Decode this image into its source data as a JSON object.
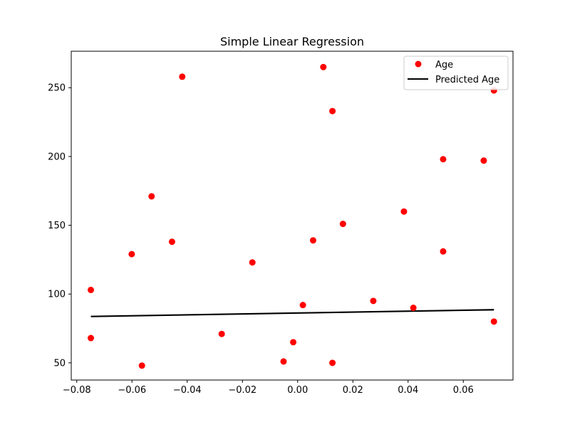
{
  "chart_data": {
    "type": "scatter",
    "title": "Simple Linear Regression",
    "xlabel": "",
    "ylabel": "",
    "xlim": [
      -0.082,
      0.078
    ],
    "ylim": [
      37.5,
      276.5
    ],
    "xticks": [
      -0.08,
      -0.06,
      -0.04,
      -0.02,
      0.0,
      0.02,
      0.04,
      0.06
    ],
    "xtick_labels": [
      "−0.08",
      "−0.06",
      "−0.04",
      "−0.02",
      "0.00",
      "0.02",
      "0.04",
      "0.06"
    ],
    "yticks": [
      50,
      100,
      150,
      200,
      250
    ],
    "ytick_labels": [
      "50",
      "100",
      "150",
      "200",
      "250"
    ],
    "grid": false,
    "legend_position": "upper-right",
    "series": [
      {
        "name": "Age",
        "kind": "scatter",
        "color": "#ff0000",
        "points": [
          {
            "x": -0.0749,
            "y": 103
          },
          {
            "x": -0.0749,
            "y": 68
          },
          {
            "x": -0.0601,
            "y": 129
          },
          {
            "x": -0.0564,
            "y": 48
          },
          {
            "x": -0.0529,
            "y": 171
          },
          {
            "x": -0.0455,
            "y": 138
          },
          {
            "x": -0.0418,
            "y": 258
          },
          {
            "x": -0.0275,
            "y": 71
          },
          {
            "x": -0.0164,
            "y": 123
          },
          {
            "x": -0.0051,
            "y": 51
          },
          {
            "x": -0.0016,
            "y": 65
          },
          {
            "x": 0.0019,
            "y": 92
          },
          {
            "x": 0.0056,
            "y": 139
          },
          {
            "x": 0.0093,
            "y": 265
          },
          {
            "x": 0.0126,
            "y": 233
          },
          {
            "x": 0.0126,
            "y": 50
          },
          {
            "x": 0.0164,
            "y": 151
          },
          {
            "x": 0.0274,
            "y": 95
          },
          {
            "x": 0.0385,
            "y": 160
          },
          {
            "x": 0.0419,
            "y": 90
          },
          {
            "x": 0.0527,
            "y": 198
          },
          {
            "x": 0.0527,
            "y": 131
          },
          {
            "x": 0.0674,
            "y": 197
          },
          {
            "x": 0.0711,
            "y": 248
          },
          {
            "x": 0.0711,
            "y": 80
          }
        ]
      },
      {
        "name": "Predicted Age",
        "kind": "line",
        "color": "#000000",
        "points": [
          {
            "x": -0.0749,
            "y": 83.7
          },
          {
            "x": 0.0711,
            "y": 88.6
          }
        ]
      }
    ]
  }
}
